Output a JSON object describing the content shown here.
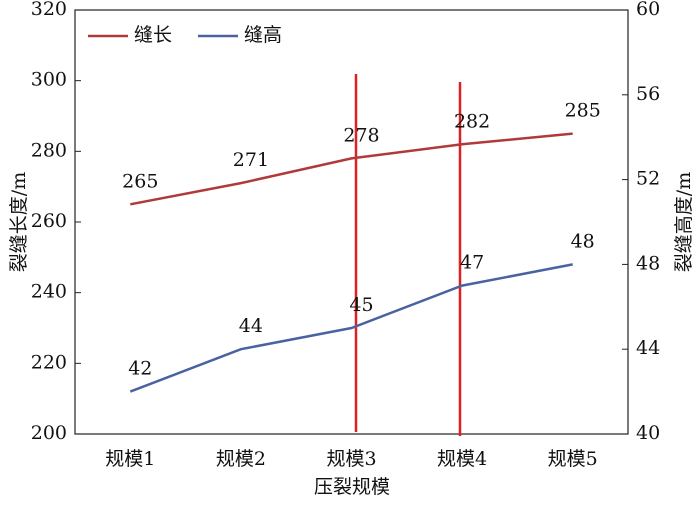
{
  "chart_data": {
    "type": "line",
    "categories": [
      "规模1",
      "规模2",
      "规模3",
      "规模4",
      "规模5"
    ],
    "xlabel": "压裂规模",
    "ylabel": "裂缝长度/m",
    "y2label": "裂缝高度/m",
    "series": [
      {
        "name": "缝长",
        "color": "#b03a3a",
        "values": [
          265,
          271,
          278,
          282,
          285
        ]
      },
      {
        "name": "缝高",
        "color": "#4a63a0",
        "values": [
          42,
          44,
          45,
          47,
          48
        ],
        "axis": "y2"
      }
    ],
    "ylim": [
      200,
      320
    ],
    "yticks": [
      200,
      220,
      240,
      260,
      280,
      300,
      320
    ],
    "y2lim": [
      40,
      60
    ],
    "y2ticks": [
      40,
      44,
      48,
      52,
      56,
      60
    ],
    "legend": "upper-left"
  }
}
